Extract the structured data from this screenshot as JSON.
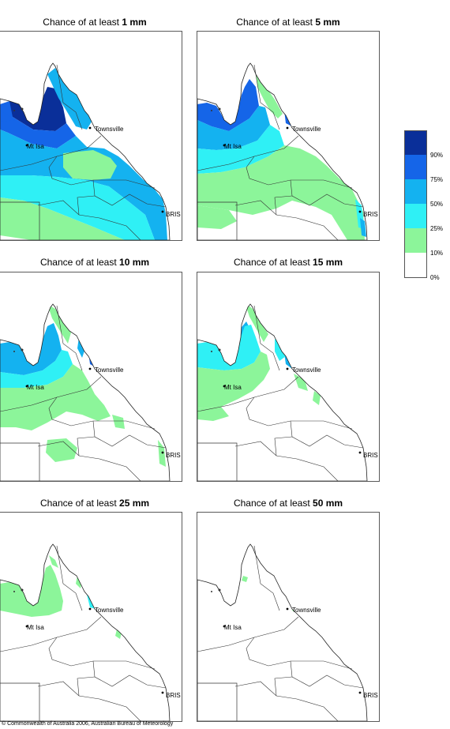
{
  "panels": [
    {
      "title_prefix": "Chance of at least ",
      "amount": "1 mm"
    },
    {
      "title_prefix": "Chance of at least ",
      "amount": "5 mm"
    },
    {
      "title_prefix": "Chance of at least ",
      "amount": "10 mm"
    },
    {
      "title_prefix": "Chance of at least ",
      "amount": "15 mm"
    },
    {
      "title_prefix": "Chance of at least ",
      "amount": "25 mm"
    },
    {
      "title_prefix": "Chance of at least ",
      "amount": "50 mm"
    }
  ],
  "places": {
    "townsville": "Townsville",
    "mt_isa": "Mt Isa",
    "brisbane": "BRIS"
  },
  "legend": {
    "labels": [
      "90%",
      "75%",
      "50%",
      "25%",
      "10%",
      "0%"
    ],
    "colors": [
      "#0a2f99",
      "#1565e8",
      "#14b2f0",
      "#2ff0f5",
      "#8cf59a",
      "#ffffff"
    ]
  },
  "copyright": "© Commonwealth of Australia 2006, Australian Bureau of Meteorology"
}
